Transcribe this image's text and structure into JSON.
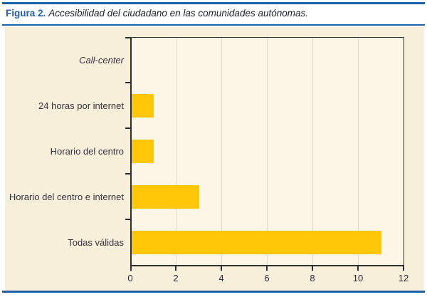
{
  "figure": {
    "label": "Figura 2.",
    "title": "Accesibilidad del ciudadano en las comunidades autónomas."
  },
  "colors": {
    "accent_blue": "#1d5fa8",
    "panel_background": "#f8efdb",
    "plot_background": "#fcf6e6",
    "bar_fill": "#ffc707",
    "axis": "#2e2e2e",
    "gridline": "#dbdbd1",
    "label_text": "#33333c"
  },
  "chart_data": {
    "type": "bar",
    "orientation": "horizontal",
    "title": "Figura 2. Accesibilidad del ciudadano en las comunidades autónomas.",
    "categories": [
      "Call-center",
      "24 horas por internet",
      "Horario del centro",
      "Horario del centro e internet",
      "Todas válidas"
    ],
    "values": [
      0,
      1,
      1,
      3,
      11
    ],
    "italic_categories": [
      "Call-center"
    ],
    "xlabel": "",
    "ylabel": "",
    "xlim": [
      0,
      12
    ],
    "x_tick_labels": [
      "0",
      "2",
      "4",
      "6",
      "8",
      "10",
      "12"
    ],
    "x_tick_values": [
      0,
      2,
      4,
      6,
      8,
      10,
      12
    ],
    "grid": true,
    "legend_position": "none"
  }
}
